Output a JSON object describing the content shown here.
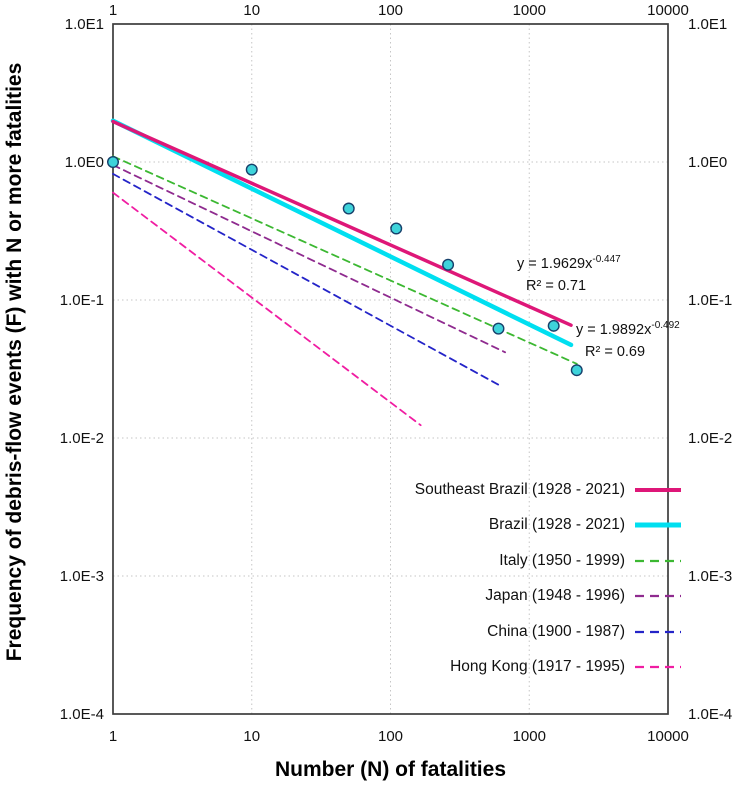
{
  "figure": {
    "x_axis_title": "Number (N) of fatalities",
    "y_axis_title": "Frequency of debris-flow events (F) with N or more fatalities"
  },
  "chart_data": {
    "type": "scatter",
    "title": "",
    "x_scale": "log",
    "y_scale": "log",
    "x_range": [
      1,
      10000
    ],
    "y_range": [
      0.0001,
      10
    ],
    "grid": "dotted gray gridlines at decade intervals; tick labels on all four sides",
    "x_ticks": [
      {
        "label": "1",
        "value": 1
      },
      {
        "label": "10",
        "value": 10
      },
      {
        "label": "100",
        "value": 100
      },
      {
        "label": "1000",
        "value": 1000
      },
      {
        "label": "10000",
        "value": 10000
      }
    ],
    "y_ticks": [
      {
        "label": "1.0E1",
        "value": 10
      },
      {
        "label": "1.0E0",
        "value": 1
      },
      {
        "label": "1.0E-1",
        "value": 0.1
      },
      {
        "label": "1.0E-2",
        "value": 0.01
      },
      {
        "label": "1.0E-3",
        "value": 0.001
      },
      {
        "label": "1.0E-4",
        "value": 0.0001
      }
    ],
    "points": {
      "name": "Southeast Brazil debris-flow F-N observations",
      "marker": "circle",
      "fill": "#3ed3da",
      "stroke": "#17406b",
      "data": [
        [
          1,
          1.0
        ],
        [
          10,
          0.88
        ],
        [
          50,
          0.46
        ],
        [
          110,
          0.33
        ],
        [
          260,
          0.18
        ],
        [
          600,
          0.062
        ],
        [
          1500,
          0.065
        ],
        [
          2200,
          0.031
        ]
      ]
    },
    "series": [
      {
        "name": "Southeast Brazil (1928 - 2021)",
        "a": 1.9629,
        "b": -0.447,
        "r2": 0.71,
        "x_min": 1,
        "x_max": 2000,
        "color": "#de1778",
        "style": "solid",
        "width": 3.5
      },
      {
        "name": "Brazil (1928 - 2021)",
        "a": 1.9892,
        "b": -0.492,
        "r2": 0.69,
        "x_min": 1,
        "x_max": 2000,
        "color": "#00dff0",
        "style": "solid",
        "width": 4.5
      },
      {
        "name": "Italy (1950 - 1999)",
        "a": 1.1,
        "b": -0.45,
        "x_min": 1,
        "x_max": 2200,
        "color": "#3cb832",
        "style": "dashed",
        "width": 1.8
      },
      {
        "name": "Japan (1948 - 1996)",
        "a": 0.95,
        "b": -0.48,
        "x_min": 1,
        "x_max": 670,
        "color": "#8f2b8f",
        "style": "dashed",
        "width": 1.8
      },
      {
        "name": "China (1900 - 1987)",
        "a": 0.82,
        "b": -0.55,
        "x_min": 1,
        "x_max": 615,
        "color": "#2424c8",
        "style": "dashed",
        "width": 1.8
      },
      {
        "name": "Hong Kong (1917 - 1995)",
        "a": 0.6,
        "b": -0.76,
        "x_min": 1,
        "x_max": 165,
        "color": "#f01da2",
        "style": "dashed",
        "width": 1.8
      }
    ],
    "annotations": {
      "se_brazil": {
        "base": "y = 1.9629x",
        "exp": "-0.447",
        "r2": "R² = 0.71"
      },
      "brazil": {
        "base": "y = 1.9892x",
        "exp": "-0.492",
        "r2": "R² = 0.69"
      }
    },
    "legend_position": "inside lower right"
  }
}
